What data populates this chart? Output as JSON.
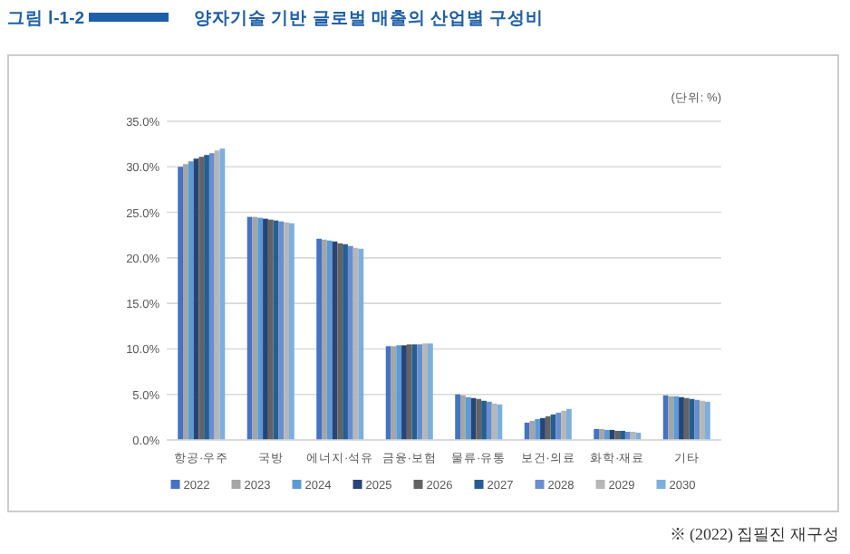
{
  "chart_data": {
    "type": "bar",
    "title": "양자기술 기반 글로벌 매출의 산업별 구성비",
    "subtitle": "그림 Ⅰ-1-2",
    "annotations": [
      "(단위: %)",
      "※ (2022) 집필진 재구성"
    ],
    "categories": [
      "항공·우주",
      "국방",
      "에너지·석유",
      "금융·보험",
      "물류·유통",
      "보건·의료",
      "화학·재료",
      "기타"
    ],
    "series": [
      {
        "name": "2022",
        "color": "#4472c4",
        "values": [
          30.0,
          24.5,
          22.1,
          10.3,
          5.0,
          1.9,
          1.2,
          4.9
        ]
      },
      {
        "name": "2023",
        "color": "#a5a5a5",
        "values": [
          30.3,
          24.5,
          22.0,
          10.3,
          4.9,
          2.1,
          1.2,
          4.8
        ]
      },
      {
        "name": "2024",
        "color": "#5b9bd5",
        "values": [
          30.6,
          24.4,
          21.9,
          10.4,
          4.7,
          2.3,
          1.1,
          4.8
        ]
      },
      {
        "name": "2025",
        "color": "#264478",
        "values": [
          30.9,
          24.3,
          21.8,
          10.4,
          4.6,
          2.4,
          1.1,
          4.7
        ]
      },
      {
        "name": "2026",
        "color": "#636363",
        "values": [
          31.1,
          24.2,
          21.6,
          10.5,
          4.5,
          2.6,
          1.0,
          4.6
        ]
      },
      {
        "name": "2027",
        "color": "#255e91",
        "values": [
          31.3,
          24.1,
          21.5,
          10.5,
          4.3,
          2.8,
          1.0,
          4.5
        ]
      },
      {
        "name": "2028",
        "color": "#698ed0",
        "values": [
          31.5,
          24.0,
          21.3,
          10.5,
          4.2,
          3.0,
          0.9,
          4.4
        ]
      },
      {
        "name": "2029",
        "color": "#b7b7b7",
        "values": [
          31.8,
          23.9,
          21.1,
          10.6,
          4.0,
          3.2,
          0.9,
          4.3
        ]
      },
      {
        "name": "2030",
        "color": "#7cafdd",
        "values": [
          32.0,
          23.8,
          21.0,
          10.6,
          3.9,
          3.4,
          0.8,
          4.2
        ]
      }
    ],
    "ylim": [
      0,
      35
    ],
    "yticks": [
      {
        "value": 0,
        "label": "0.0%"
      },
      {
        "value": 5,
        "label": "5.0%"
      },
      {
        "value": 10,
        "label": "10.0%"
      },
      {
        "value": 15,
        "label": "15.0%"
      },
      {
        "value": 20,
        "label": "20.0%"
      },
      {
        "value": 25,
        "label": "25.0%"
      },
      {
        "value": 30,
        "label": "30.0%"
      },
      {
        "value": 35,
        "label": "35.0%"
      }
    ],
    "grid": "y",
    "legend": "bottom"
  }
}
